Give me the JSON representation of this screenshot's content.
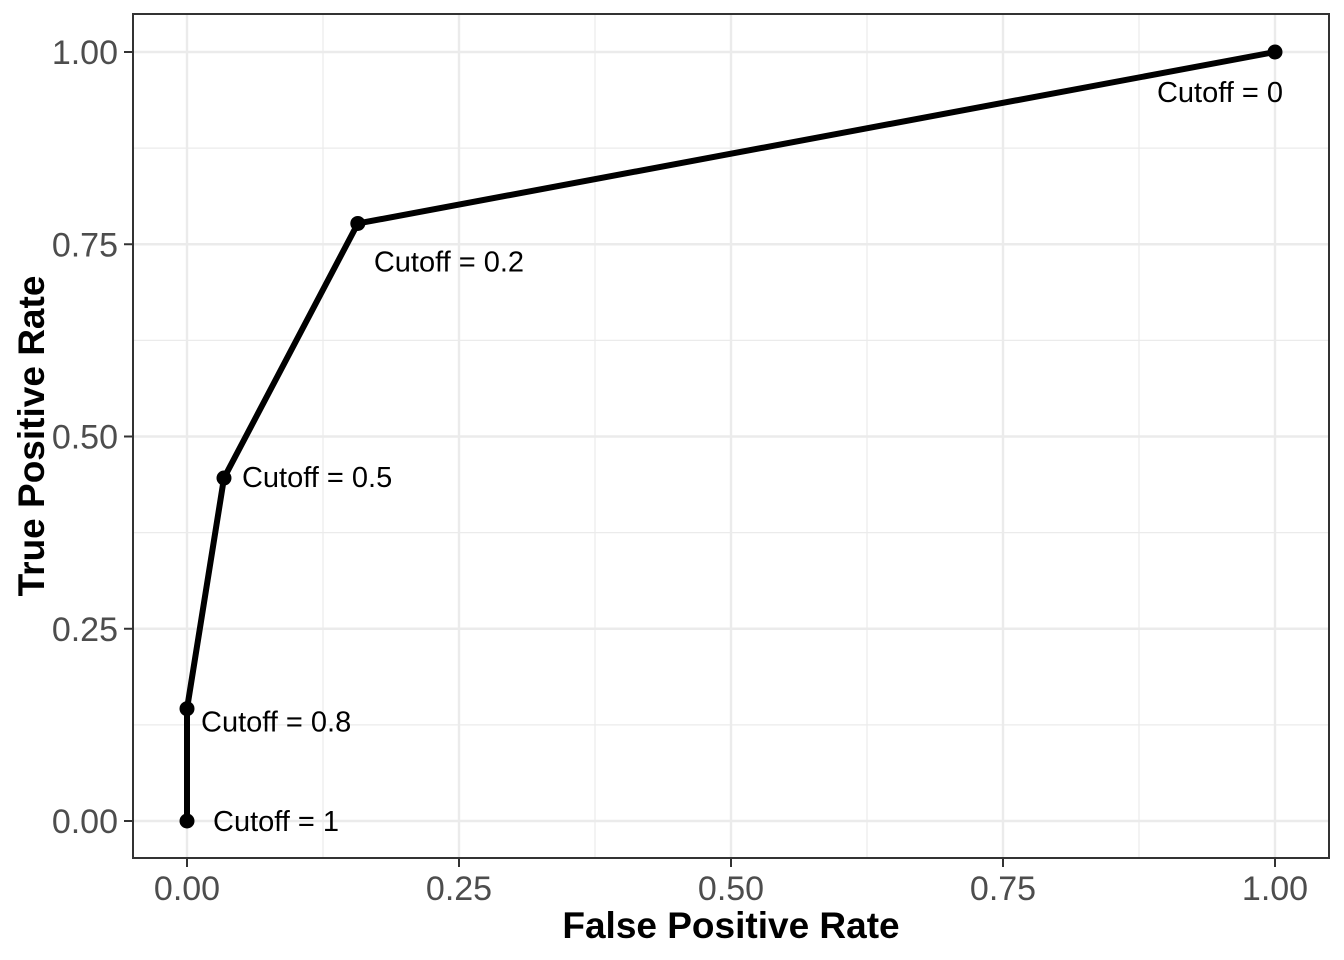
{
  "figure": {
    "background": "#FFFFFF"
  },
  "colors": {
    "line": "#000000",
    "point": "#000000",
    "grid_major": "#EBEBEB",
    "grid_minor": "#EBEBEB",
    "panel_border": "#333333",
    "tick_mark": "#333333",
    "tick_text": "#4D4D4D",
    "axis_title_text": "#000000",
    "annotation_text": "#000000"
  },
  "chart_data": {
    "type": "line",
    "title": "",
    "xlabel": "False Positive Rate",
    "ylabel": "True Positive Rate",
    "xlim": [
      0,
      1
    ],
    "ylim": [
      0,
      1
    ],
    "grid": true,
    "legend_position": "none",
    "x_axis": {
      "tick_values": [
        0,
        0.25,
        0.5,
        0.75,
        1.0
      ],
      "tick_labels": [
        "0.00",
        "0.25",
        "0.50",
        "0.75",
        "1.00"
      ],
      "minor_tick_values": [
        0.125,
        0.375,
        0.625,
        0.875
      ]
    },
    "y_axis": {
      "tick_values": [
        0,
        0.25,
        0.5,
        0.75,
        1.0
      ],
      "tick_labels": [
        "0.00",
        "0.25",
        "0.50",
        "0.75",
        "1.00"
      ],
      "minor_tick_values": [
        0.125,
        0.375,
        0.625,
        0.875
      ]
    },
    "series": [
      {
        "name": "roc-curve",
        "color": "#000000",
        "points": [
          {
            "x": 0.0,
            "y": 0.0,
            "cutoff": 1,
            "label": "Cutoff = 1"
          },
          {
            "x": 0.0,
            "y": 0.146,
            "cutoff": 0.8,
            "label": "Cutoff = 0.8"
          },
          {
            "x": 0.034,
            "y": 0.446,
            "cutoff": 0.5,
            "label": "Cutoff = 0.5"
          },
          {
            "x": 0.157,
            "y": 0.777,
            "cutoff": 0.2,
            "label": "Cutoff = 0.2"
          },
          {
            "x": 1.0,
            "y": 1.0,
            "cutoff": 0,
            "label": "Cutoff = 0"
          }
        ]
      }
    ]
  }
}
